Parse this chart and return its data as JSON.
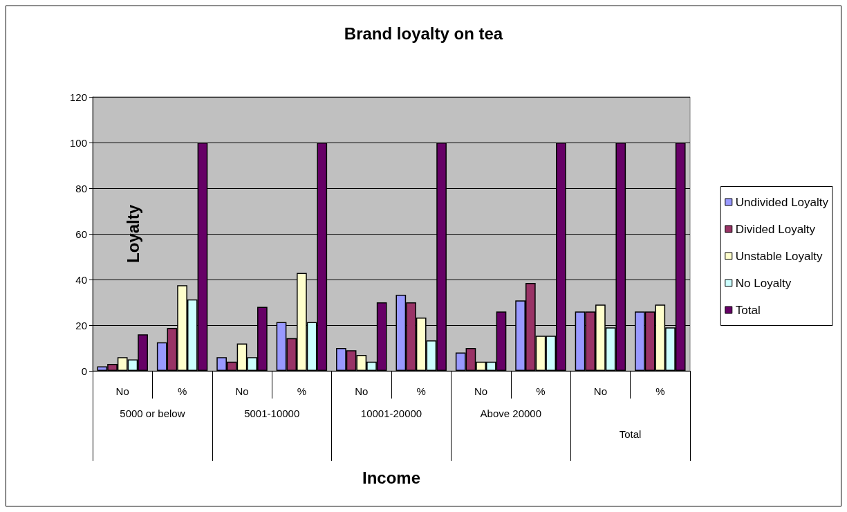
{
  "chart_data": {
    "type": "bar",
    "title": "Brand loyalty on tea",
    "xlabel": "Income",
    "ylabel": "Loyalty",
    "categories": [
      "No",
      "%",
      "No",
      "%",
      "No",
      "%",
      "No",
      "%",
      "No",
      "%"
    ],
    "annotations": [
      "5000 or below",
      "5001-10000",
      "10001-20000",
      "Above 20000",
      "Total"
    ],
    "series": [
      {
        "name": "Undivided Loyalty",
        "color": "#9999ff",
        "values": [
          2,
          12.5,
          6,
          21.4,
          10,
          33.3,
          8,
          30.8,
          26,
          26
        ]
      },
      {
        "name": "Divided Loyalty",
        "color": "#993366",
        "values": [
          3,
          18.8,
          4,
          14.3,
          9,
          30,
          10,
          38.5,
          26,
          26
        ]
      },
      {
        "name": "Unstable Loyalty",
        "color": "#ffffcc",
        "values": [
          6,
          37.5,
          12,
          42.9,
          7,
          23.3,
          4,
          15.4,
          29,
          29
        ]
      },
      {
        "name": "No Loyalty",
        "color": "#ccffff",
        "values": [
          5,
          31.3,
          6,
          21.4,
          4,
          13.3,
          4,
          15.4,
          19,
          19
        ]
      },
      {
        "name": "Total",
        "color": "#660066",
        "values": [
          16,
          100,
          28,
          100,
          30,
          100,
          26,
          100,
          100,
          100
        ]
      }
    ],
    "ylim": [
      0,
      120
    ],
    "yticks": [
      0,
      20,
      40,
      60,
      80,
      100,
      120
    ],
    "grid": "y",
    "legend": "right"
  }
}
